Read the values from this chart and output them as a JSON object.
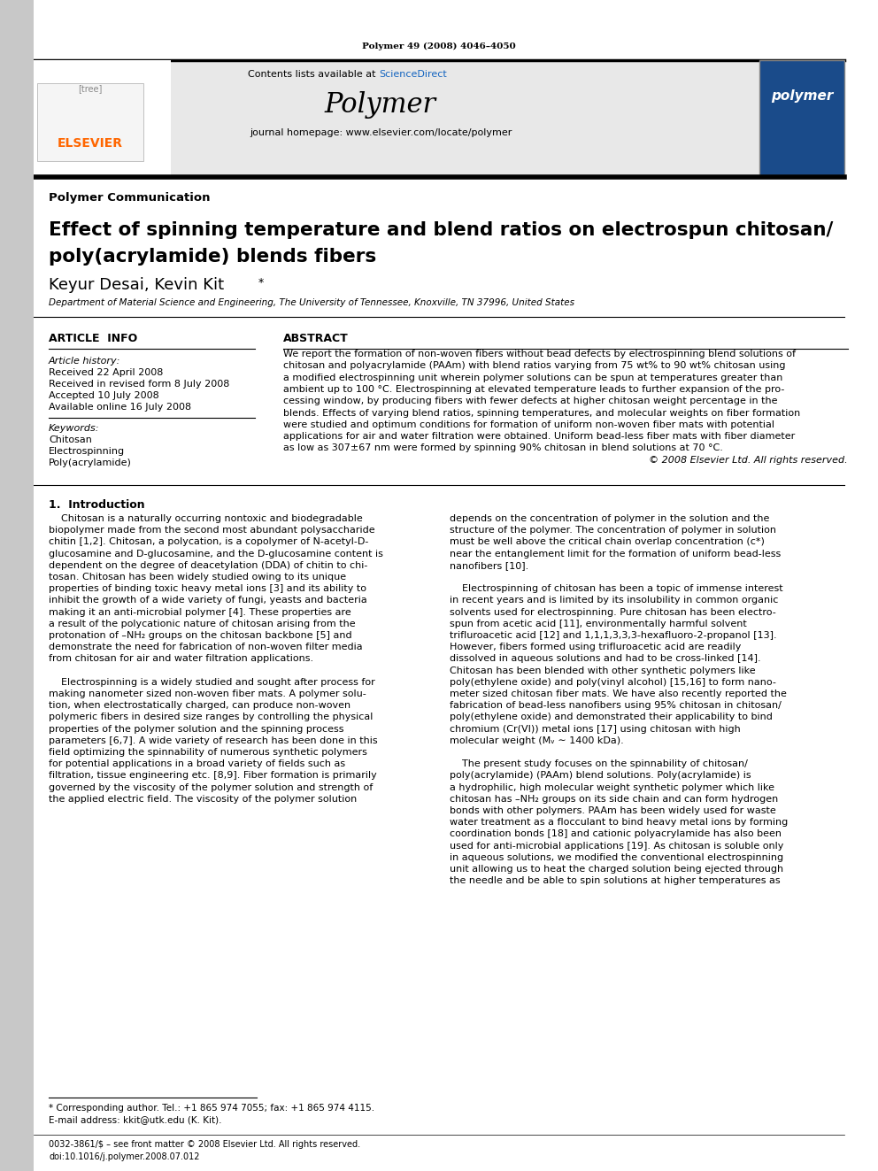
{
  "page_width": 9.92,
  "page_height": 13.23,
  "background_color": "#ffffff",
  "top_label": "Polymer 49 (2008) 4046–4050",
  "journal_name": "Polymer",
  "contents_line": "Contents lists available at ScienceDirect",
  "journal_url": "journal homepage: www.elsevier.com/locate/polymer",
  "section_label": "Polymer Communication",
  "paper_title_line1": "Effect of spinning temperature and blend ratios on electrospun chitosan/",
  "paper_title_line2": "poly(acrylamide) blends fibers",
  "authors": "Keyur Desai, Kevin Kit",
  "affiliation": "Department of Material Science and Engineering, The University of Tennessee, Knoxville, TN 37996, United States",
  "article_info_header": "ARTICLE  INFO",
  "article_history_label": "Article history:",
  "received_1": "Received 22 April 2008",
  "received_2": "Received in revised form 8 July 2008",
  "accepted": "Accepted 10 July 2008",
  "available": "Available online 16 July 2008",
  "keywords_label": "Keywords:",
  "keyword1": "Chitosan",
  "keyword2": "Electrospinning",
  "keyword3": "Poly(acrylamide)",
  "abstract_header": "ABSTRACT",
  "abstract_lines": [
    "We report the formation of non-woven fibers without bead defects by electrospinning blend solutions of",
    "chitosan and polyacrylamide (PAAm) with blend ratios varying from 75 wt% to 90 wt% chitosan using",
    "a modified electrospinning unit wherein polymer solutions can be spun at temperatures greater than",
    "ambient up to 100 °C. Electrospinning at elevated temperature leads to further expansion of the pro-",
    "cessing window, by producing fibers with fewer defects at higher chitosan weight percentage in the",
    "blends. Effects of varying blend ratios, spinning temperatures, and molecular weights on fiber formation",
    "were studied and optimum conditions for formation of uniform non-woven fiber mats with potential",
    "applications for air and water filtration were obtained. Uniform bead-less fiber mats with fiber diameter",
    "as low as 307±67 nm were formed by spinning 90% chitosan in blend solutions at 70 °C.",
    "© 2008 Elsevier Ltd. All rights reserved."
  ],
  "intro_header": "1.  Introduction",
  "intro_col1_lines": [
    "    Chitosan is a naturally occurring nontoxic and biodegradable",
    "biopolymer made from the second most abundant polysaccharide",
    "chitin [1,2]. Chitosan, a polycation, is a copolymer of N-acetyl-D-",
    "glucosamine and D-glucosamine, and the D-glucosamine content is",
    "dependent on the degree of deacetylation (DDA) of chitin to chi-",
    "tosan. Chitosan has been widely studied owing to its unique",
    "properties of binding toxic heavy metal ions [3] and its ability to",
    "inhibit the growth of a wide variety of fungi, yeasts and bacteria",
    "making it an anti-microbial polymer [4]. These properties are",
    "a result of the polycationic nature of chitosan arising from the",
    "protonation of –NH₂ groups on the chitosan backbone [5] and",
    "demonstrate the need for fabrication of non-woven filter media",
    "from chitosan for air and water filtration applications.",
    "",
    "    Electrospinning is a widely studied and sought after process for",
    "making nanometer sized non-woven fiber mats. A polymer solu-",
    "tion, when electrostatically charged, can produce non-woven",
    "polymeric fibers in desired size ranges by controlling the physical",
    "properties of the polymer solution and the spinning process",
    "parameters [6,7]. A wide variety of research has been done in this",
    "field optimizing the spinnability of numerous synthetic polymers",
    "for potential applications in a broad variety of fields such as",
    "filtration, tissue engineering etc. [8,9]. Fiber formation is primarily",
    "governed by the viscosity of the polymer solution and strength of",
    "the applied electric field. The viscosity of the polymer solution"
  ],
  "intro_col2_lines": [
    "depends on the concentration of polymer in the solution and the",
    "structure of the polymer. The concentration of polymer in solution",
    "must be well above the critical chain overlap concentration (c*)",
    "near the entanglement limit for the formation of uniform bead-less",
    "nanofibers [10].",
    "",
    "    Electrospinning of chitosan has been a topic of immense interest",
    "in recent years and is limited by its insolubility in common organic",
    "solvents used for electrospinning. Pure chitosan has been electro-",
    "spun from acetic acid [11], environmentally harmful solvent",
    "trifluroacetic acid [12] and 1,1,1,3,3,3-hexafluoro-2-propanol [13].",
    "However, fibers formed using trifluroacetic acid are readily",
    "dissolved in aqueous solutions and had to be cross-linked [14].",
    "Chitosan has been blended with other synthetic polymers like",
    "poly(ethylene oxide) and poly(vinyl alcohol) [15,16] to form nano-",
    "meter sized chitosan fiber mats. We have also recently reported the",
    "fabrication of bead-less nanofibers using 95% chitosan in chitosan/",
    "poly(ethylene oxide) and demonstrated their applicability to bind",
    "chromium (Cr(VI)) metal ions [17] using chitosan with high",
    "molecular weight (Mᵥ ∼ 1400 kDa).",
    "",
    "    The present study focuses on the spinnability of chitosan/",
    "poly(acrylamide) (PAAm) blend solutions. Poly(acrylamide) is",
    "a hydrophilic, high molecular weight synthetic polymer which like",
    "chitosan has –NH₂ groups on its side chain and can form hydrogen",
    "bonds with other polymers. PAAm has been widely used for waste",
    "water treatment as a flocculant to bind heavy metal ions by forming",
    "coordination bonds [18] and cationic polyacrylamide has also been",
    "used for anti-microbial applications [19]. As chitosan is soluble only",
    "in aqueous solutions, we modified the conventional electrospinning",
    "unit allowing us to heat the charged solution being ejected through",
    "the needle and be able to spin solutions at higher temperatures as"
  ],
  "footnote1": "* Corresponding author. Tel.: +1 865 974 7055; fax: +1 865 974 4115.",
  "footnote2": "E-mail address: kkit@utk.edu (K. Kit).",
  "footer1": "0032-3861/$ – see front matter © 2008 Elsevier Ltd. All rights reserved.",
  "footer2": "doi:10.1016/j.polymer.2008.07.012",
  "elsevier_color": "#FF6600",
  "sciencedirect_color": "#1565c0",
  "header_bg": "#e8e8e8",
  "left_bar_color": "#c8c8c8"
}
